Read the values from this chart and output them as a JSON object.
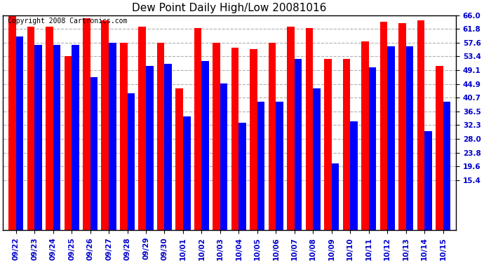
{
  "title": "Dew Point Daily High/Low 20081016",
  "copyright": "Copyright 2008 Cartronics.com",
  "categories": [
    "09/22",
    "09/23",
    "09/24",
    "09/25",
    "09/26",
    "09/27",
    "09/28",
    "09/29",
    "09/30",
    "10/01",
    "10/02",
    "10/03",
    "10/04",
    "10/05",
    "10/06",
    "10/07",
    "10/08",
    "10/09",
    "10/10",
    "10/11",
    "10/12",
    "10/13",
    "10/14",
    "10/15"
  ],
  "highs": [
    66.0,
    62.5,
    62.5,
    53.5,
    65.0,
    64.5,
    57.5,
    62.5,
    57.5,
    43.5,
    62.0,
    57.5,
    56.0,
    55.5,
    57.5,
    62.5,
    62.0,
    52.5,
    52.5,
    58.0,
    64.0,
    63.5,
    64.5,
    50.5
  ],
  "lows": [
    59.5,
    57.0,
    57.0,
    57.0,
    47.0,
    57.5,
    42.0,
    50.5,
    51.0,
    35.0,
    52.0,
    45.0,
    33.0,
    39.5,
    39.5,
    52.5,
    43.5,
    20.5,
    33.5,
    50.0,
    56.5,
    56.5,
    30.5,
    39.5
  ],
  "high_color": "#ff0000",
  "low_color": "#0000ff",
  "bg_color": "#ffffff",
  "plot_bg_color": "#ffffff",
  "grid_color": "#b0b0b0",
  "yticks": [
    15.4,
    19.6,
    23.8,
    28.0,
    32.3,
    36.5,
    40.7,
    44.9,
    49.1,
    53.4,
    57.6,
    61.8,
    66.0
  ],
  "ymin": 15.4,
  "ymax": 66.0,
  "title_fontsize": 11,
  "tick_fontsize": 7.5,
  "copyright_fontsize": 7
}
